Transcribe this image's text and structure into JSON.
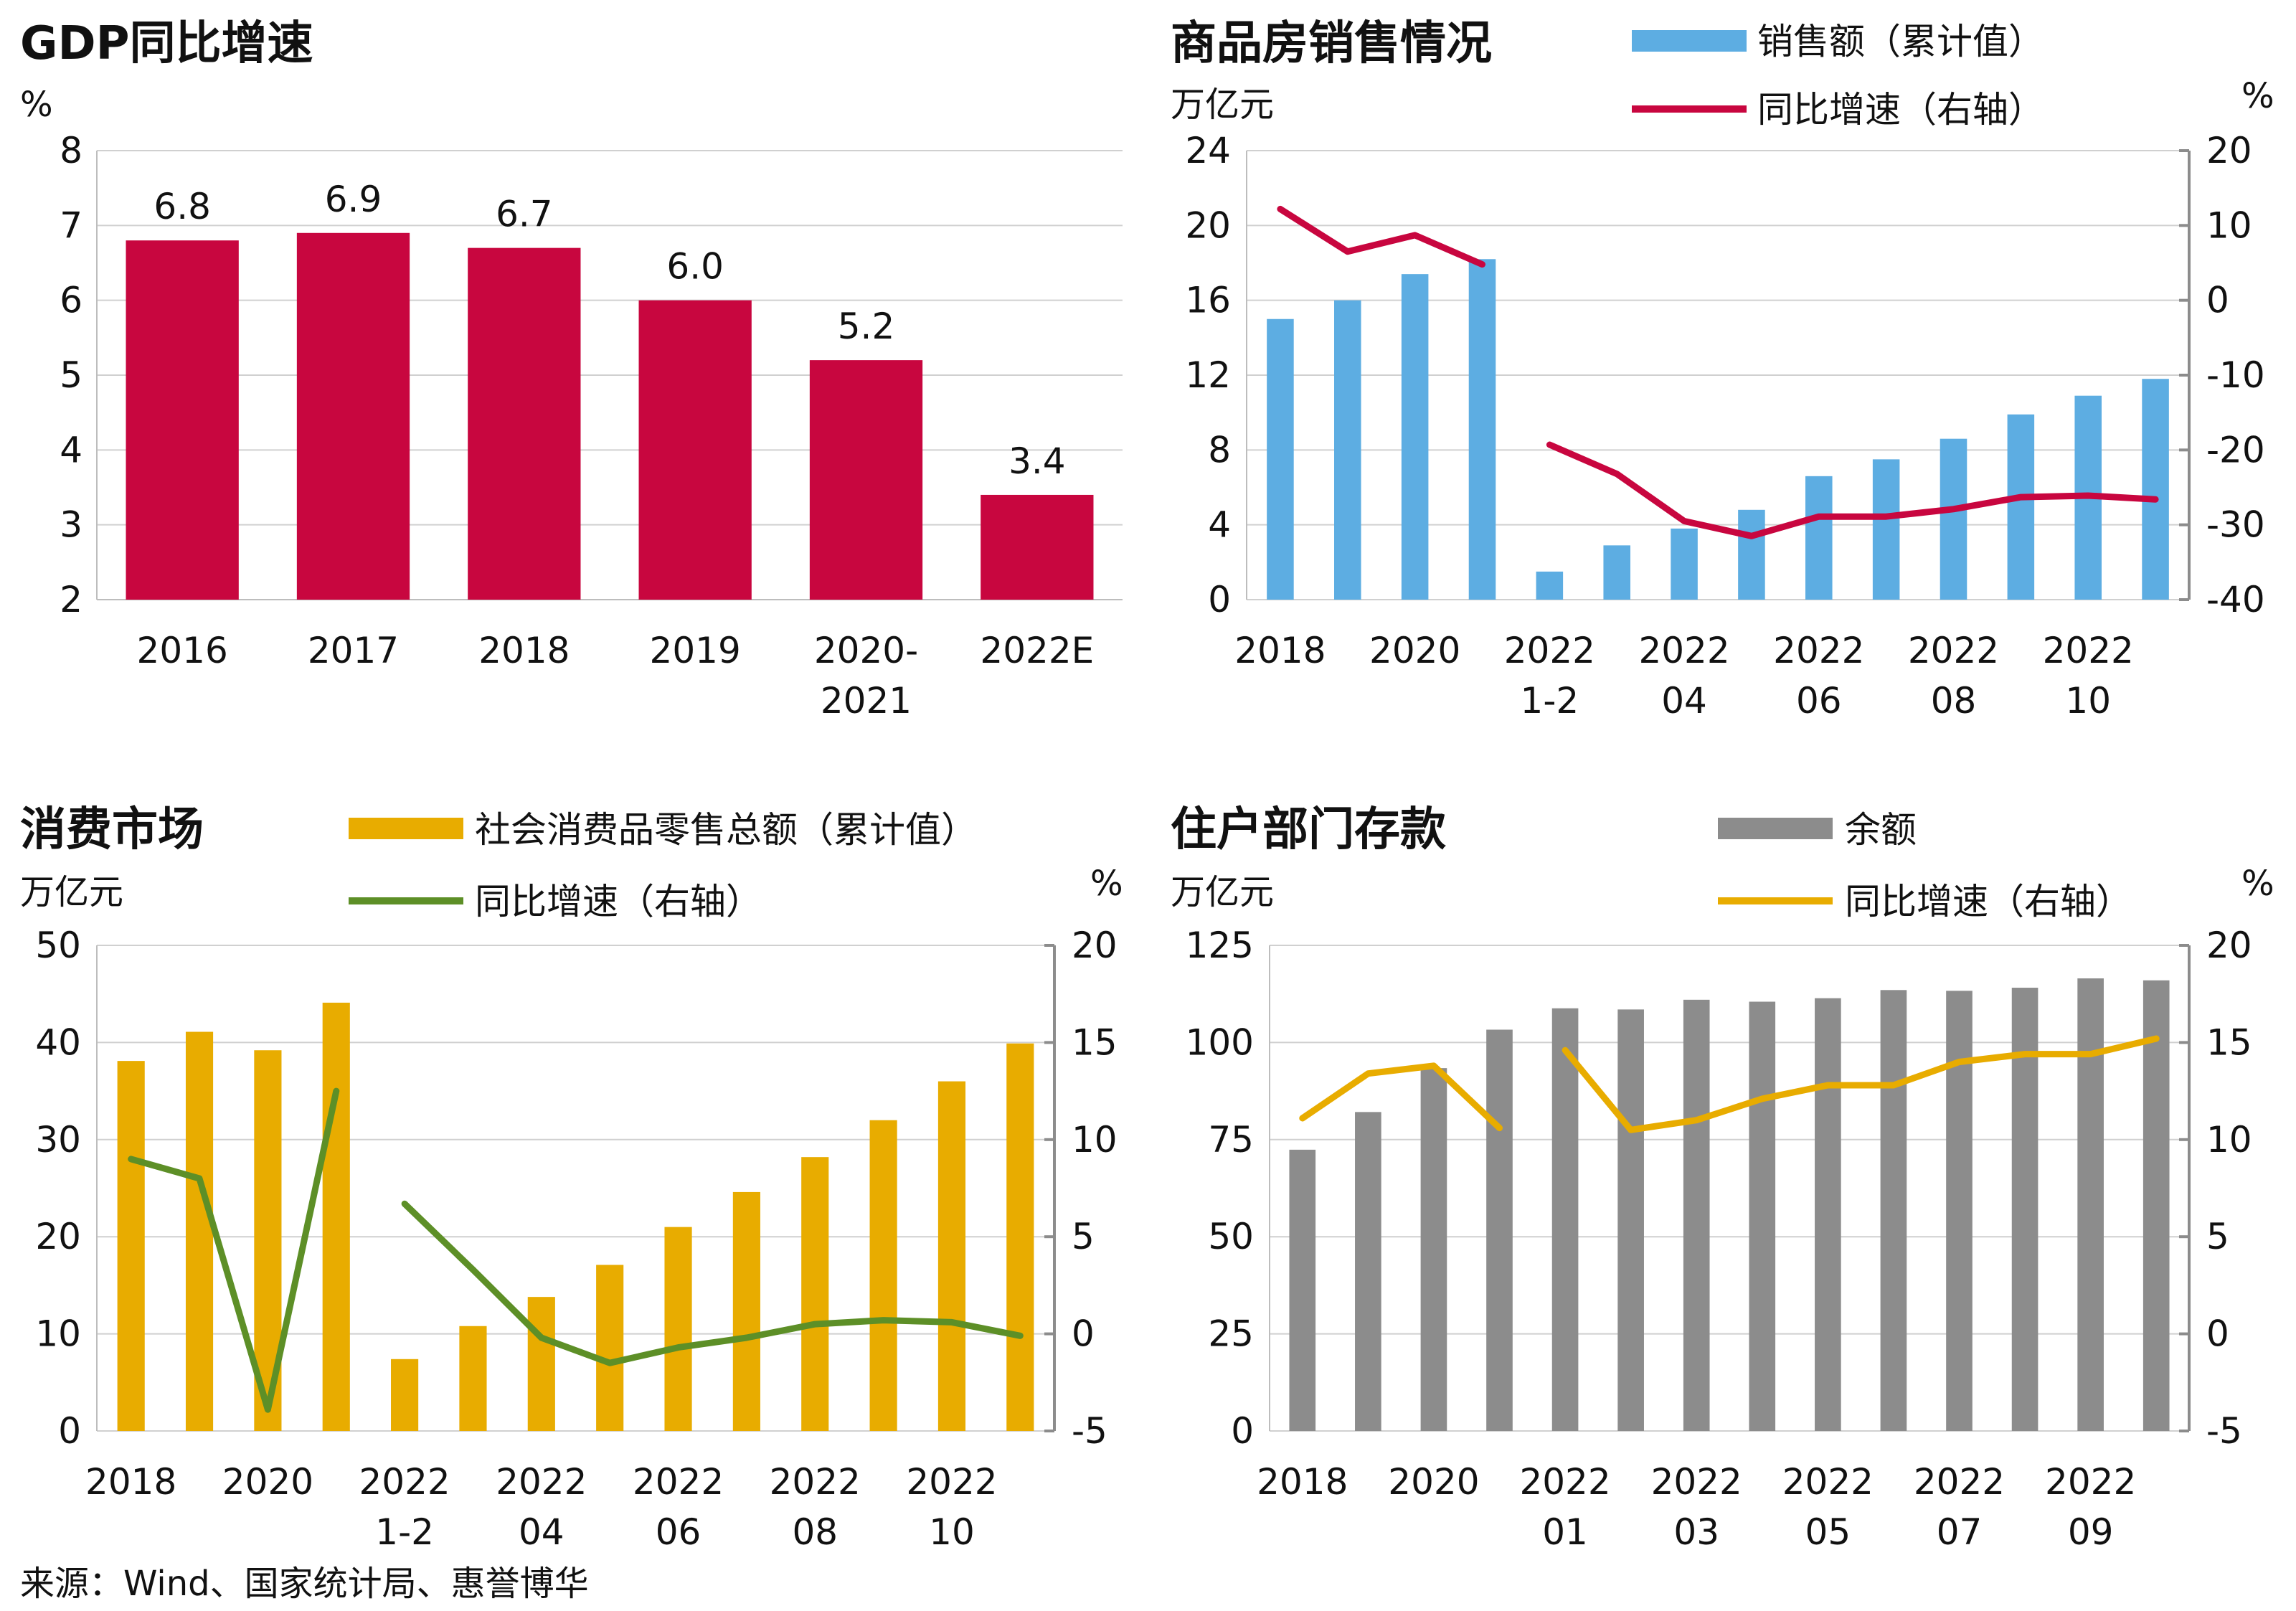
{
  "source": "来源：Wind、国家统计局、惠誉博华",
  "chart_data": [
    {
      "id": "gdp",
      "type": "bar",
      "title": "GDP同比增速",
      "left_unit": "%",
      "categories": [
        [
          "2016"
        ],
        [
          "2017"
        ],
        [
          "2018"
        ],
        [
          "2019"
        ],
        [
          "2020-",
          "2021"
        ],
        [
          "2022E"
        ]
      ],
      "series": [
        {
          "values": [
            6.8,
            6.9,
            6.7,
            6.0,
            5.2,
            3.4
          ],
          "labels": [
            "6.8",
            "6.9",
            "6.7",
            "6.0",
            "5.2",
            "3.4"
          ],
          "color": "#c8063f"
        }
      ],
      "ylim": [
        2,
        8
      ],
      "yticks": [
        "2",
        "3",
        "4",
        "5",
        "6",
        "7",
        "8"
      ],
      "grid": true
    },
    {
      "id": "housing",
      "type": "bar+line",
      "title": "商品房销售情况",
      "left_unit": "万亿元",
      "right_unit": "%",
      "legend": [
        "销售额（累计值）",
        "同比增速（右轴）"
      ],
      "x_labels": [
        [
          "2018"
        ],
        [
          "2020"
        ],
        [
          "2022",
          "1-2"
        ],
        [
          "2022",
          "04"
        ],
        [
          "2022",
          "06"
        ],
        [
          "2022",
          "08"
        ],
        [
          "2022",
          "10"
        ]
      ],
      "bars": {
        "color": "#5dade2",
        "values": [
          15.0,
          16.0,
          17.4,
          18.2,
          1.5,
          2.9,
          3.8,
          4.8,
          6.6,
          7.5,
          8.6,
          9.9,
          10.9,
          11.8
        ]
      },
      "line": {
        "color": "#c8063f",
        "segments": [
          [
            12.2,
            6.5,
            8.7,
            4.8
          ],
          [
            -19.3,
            -23.2,
            -29.5,
            -31.5,
            -28.9,
            -28.9,
            -27.9,
            -26.3,
            -26.1,
            -26.6
          ]
        ]
      },
      "ylim_left": [
        0,
        24
      ],
      "yticks_left": [
        "0",
        "4",
        "8",
        "12",
        "16",
        "20",
        "24"
      ],
      "ylim_right": [
        -40,
        20
      ],
      "yticks_right": [
        "-40",
        "-30",
        "-20",
        "-10",
        "0",
        "10",
        "20"
      ],
      "grid": true
    },
    {
      "id": "retail",
      "type": "bar+line",
      "title": "消费市场",
      "left_unit": "万亿元",
      "right_unit": "%",
      "legend": [
        "社会消费品零售总额（累计值）",
        "同比增速（右轴）"
      ],
      "x_labels": [
        [
          "2018"
        ],
        [
          "2020"
        ],
        [
          "2022",
          "1-2"
        ],
        [
          "2022",
          "04"
        ],
        [
          "2022",
          "06"
        ],
        [
          "2022",
          "08"
        ],
        [
          "2022",
          "10"
        ]
      ],
      "bars": {
        "color": "#e8ac00",
        "values": [
          38.1,
          41.1,
          39.2,
          44.1,
          7.4,
          10.8,
          13.8,
          17.1,
          21.0,
          24.6,
          28.2,
          32.0,
          36.0,
          39.9
        ]
      },
      "line": {
        "color": "#5d8f27",
        "segments": [
          [
            9.0,
            8.0,
            -3.9,
            12.5
          ],
          [
            6.7,
            3.3,
            -0.2,
            -1.5,
            -0.7,
            -0.2,
            0.5,
            0.7,
            0.6,
            -0.1
          ]
        ]
      },
      "ylim_left": [
        0,
        50
      ],
      "yticks_left": [
        "0",
        "10",
        "20",
        "30",
        "40",
        "50"
      ],
      "ylim_right": [
        -5,
        20
      ],
      "yticks_right": [
        "-5",
        "0",
        "5",
        "10",
        "15",
        "20"
      ],
      "grid": true
    },
    {
      "id": "deposits",
      "type": "bar+line",
      "title": "住户部门存款",
      "left_unit": "万亿元",
      "right_unit": "%",
      "legend": [
        "余额",
        "同比增速（右轴）"
      ],
      "x_labels": [
        [
          "2018"
        ],
        [
          "2020"
        ],
        [
          "2022",
          "01"
        ],
        [
          "2022",
          "03"
        ],
        [
          "2022",
          "05"
        ],
        [
          "2022",
          "07"
        ],
        [
          "2022",
          "09"
        ]
      ],
      "bars": {
        "color": "#8c8c8c",
        "values": [
          72.4,
          82.1,
          93.4,
          103.3,
          108.8,
          108.5,
          111.0,
          110.5,
          111.4,
          113.5,
          113.3,
          114.1,
          116.5,
          116.0
        ]
      },
      "line": {
        "color": "#e8ac00",
        "segments": [
          [
            11.1,
            13.4,
            13.8,
            10.6
          ],
          [
            14.6,
            10.5,
            11.0,
            12.1,
            12.8,
            12.8,
            14.0,
            14.4,
            14.4,
            15.2
          ]
        ]
      },
      "ylim_left": [
        0,
        125
      ],
      "yticks_left": [
        "0",
        "25",
        "50",
        "75",
        "100",
        "125"
      ],
      "ylim_right": [
        -5,
        20
      ],
      "yticks_right": [
        "-5",
        "0",
        "5",
        "10",
        "15",
        "20"
      ],
      "grid": true
    }
  ]
}
